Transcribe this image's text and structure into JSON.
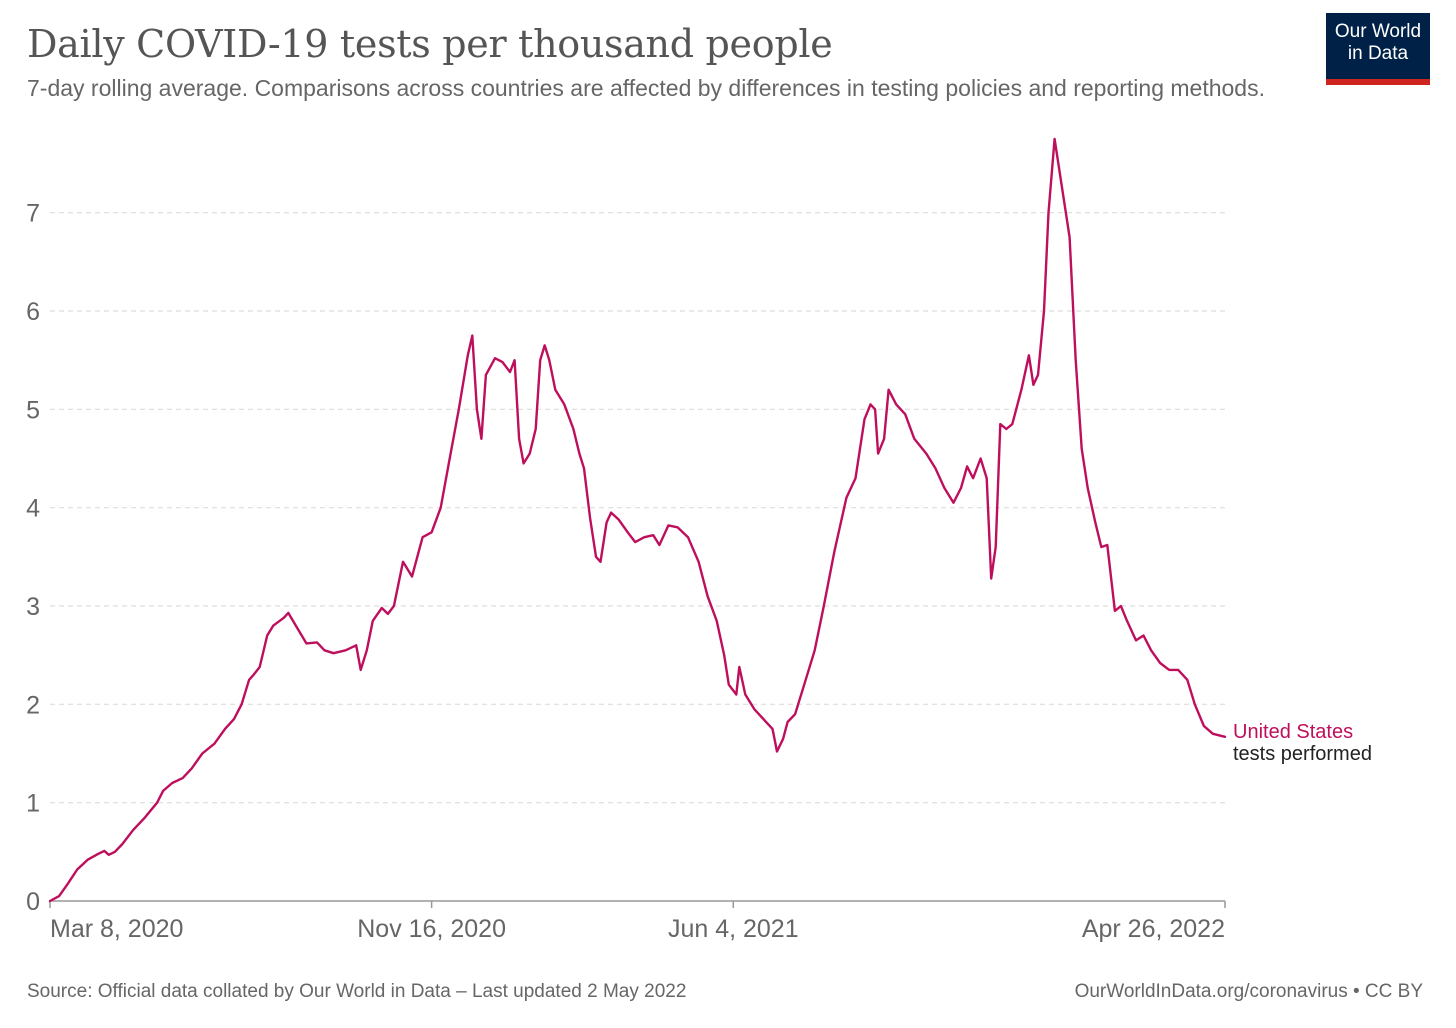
{
  "chart_data": {
    "type": "line",
    "title": "Daily COVID-19 tests per thousand people",
    "subtitle": "7-day rolling average. Comparisons across countries are affected by differences in testing policies and reporting methods.",
    "xlabel": "",
    "ylabel": "",
    "ylim": [
      0,
      7.8
    ],
    "yticks": [
      "0",
      "1",
      "2",
      "3",
      "4",
      "5",
      "6",
      "7"
    ],
    "grid": true,
    "x_start": "2020-03-08",
    "x_end": "2022-04-26",
    "xticks": [
      {
        "date": "2020-03-08",
        "label": "Mar 8, 2020"
      },
      {
        "date": "2020-11-16",
        "label": "Nov 16, 2020"
      },
      {
        "date": "2021-06-04",
        "label": "Jun 4, 2021"
      },
      {
        "date": "2022-04-26",
        "label": "Apr 26, 2022"
      }
    ],
    "series": [
      {
        "name": "United States",
        "sublabel": "tests performed",
        "color": "#be0f5d",
        "points": [
          [
            "2020-03-08",
            0.0
          ],
          [
            "2020-03-14",
            0.05
          ],
          [
            "2020-03-20",
            0.18
          ],
          [
            "2020-03-26",
            0.32
          ],
          [
            "2020-04-02",
            0.42
          ],
          [
            "2020-04-09",
            0.48
          ],
          [
            "2020-04-13",
            0.51
          ],
          [
            "2020-04-16",
            0.47
          ],
          [
            "2020-04-20",
            0.5
          ],
          [
            "2020-04-25",
            0.58
          ],
          [
            "2020-05-02",
            0.72
          ],
          [
            "2020-05-10",
            0.85
          ],
          [
            "2020-05-18",
            1.0
          ],
          [
            "2020-05-22",
            1.12
          ],
          [
            "2020-05-28",
            1.2
          ],
          [
            "2020-06-04",
            1.25
          ],
          [
            "2020-06-10",
            1.35
          ],
          [
            "2020-06-17",
            1.5
          ],
          [
            "2020-06-25",
            1.6
          ],
          [
            "2020-07-02",
            1.75
          ],
          [
            "2020-07-08",
            1.85
          ],
          [
            "2020-07-13",
            2.0
          ],
          [
            "2020-07-18",
            2.25
          ],
          [
            "2020-07-21",
            2.3
          ],
          [
            "2020-07-25",
            2.38
          ],
          [
            "2020-07-30",
            2.7
          ],
          [
            "2020-08-03",
            2.8
          ],
          [
            "2020-08-10",
            2.88
          ],
          [
            "2020-08-13",
            2.93
          ],
          [
            "2020-08-18",
            2.8
          ],
          [
            "2020-08-25",
            2.62
          ],
          [
            "2020-09-01",
            2.63
          ],
          [
            "2020-09-06",
            2.55
          ],
          [
            "2020-09-12",
            2.52
          ],
          [
            "2020-09-20",
            2.55
          ],
          [
            "2020-09-27",
            2.6
          ],
          [
            "2020-09-30",
            2.35
          ],
          [
            "2020-10-04",
            2.55
          ],
          [
            "2020-10-08",
            2.85
          ],
          [
            "2020-10-14",
            2.98
          ],
          [
            "2020-10-18",
            2.92
          ],
          [
            "2020-10-22",
            3.0
          ],
          [
            "2020-10-28",
            3.45
          ],
          [
            "2020-11-03",
            3.3
          ],
          [
            "2020-11-10",
            3.7
          ],
          [
            "2020-11-16",
            3.75
          ],
          [
            "2020-11-22",
            4.0
          ],
          [
            "2020-11-28",
            4.5
          ],
          [
            "2020-12-04",
            5.0
          ],
          [
            "2020-12-10",
            5.55
          ],
          [
            "2020-12-13",
            5.75
          ],
          [
            "2020-12-16",
            5.0
          ],
          [
            "2020-12-19",
            4.7
          ],
          [
            "2020-12-22",
            5.35
          ],
          [
            "2020-12-28",
            5.52
          ],
          [
            "2021-01-02",
            5.48
          ],
          [
            "2021-01-07",
            5.38
          ],
          [
            "2021-01-10",
            5.5
          ],
          [
            "2021-01-13",
            4.7
          ],
          [
            "2021-01-16",
            4.45
          ],
          [
            "2021-01-20",
            4.55
          ],
          [
            "2021-01-24",
            4.8
          ],
          [
            "2021-01-27",
            5.5
          ],
          [
            "2021-01-30",
            5.65
          ],
          [
            "2021-02-02",
            5.5
          ],
          [
            "2021-02-06",
            5.2
          ],
          [
            "2021-02-12",
            5.05
          ],
          [
            "2021-02-18",
            4.8
          ],
          [
            "2021-02-22",
            4.55
          ],
          [
            "2021-02-25",
            4.4
          ],
          [
            "2021-03-01",
            3.9
          ],
          [
            "2021-03-05",
            3.5
          ],
          [
            "2021-03-08",
            3.45
          ],
          [
            "2021-03-12",
            3.85
          ],
          [
            "2021-03-15",
            3.95
          ],
          [
            "2021-03-20",
            3.88
          ],
          [
            "2021-03-26",
            3.75
          ],
          [
            "2021-03-31",
            3.65
          ],
          [
            "2021-04-06",
            3.7
          ],
          [
            "2021-04-12",
            3.72
          ],
          [
            "2021-04-16",
            3.62
          ],
          [
            "2021-04-22",
            3.82
          ],
          [
            "2021-04-28",
            3.8
          ],
          [
            "2021-05-05",
            3.7
          ],
          [
            "2021-05-12",
            3.45
          ],
          [
            "2021-05-18",
            3.1
          ],
          [
            "2021-05-24",
            2.85
          ],
          [
            "2021-05-29",
            2.5
          ],
          [
            "2021-06-01",
            2.2
          ],
          [
            "2021-06-06",
            2.1
          ],
          [
            "2021-06-08",
            2.38
          ],
          [
            "2021-06-12",
            2.1
          ],
          [
            "2021-06-18",
            1.95
          ],
          [
            "2021-06-24",
            1.85
          ],
          [
            "2021-06-30",
            1.75
          ],
          [
            "2021-07-03",
            1.52
          ],
          [
            "2021-07-07",
            1.65
          ],
          [
            "2021-07-10",
            1.82
          ],
          [
            "2021-07-15",
            1.9
          ],
          [
            "2021-07-21",
            2.2
          ],
          [
            "2021-07-28",
            2.55
          ],
          [
            "2021-08-03",
            3.0
          ],
          [
            "2021-08-10",
            3.55
          ],
          [
            "2021-08-18",
            4.1
          ],
          [
            "2021-08-24",
            4.3
          ],
          [
            "2021-08-30",
            4.9
          ],
          [
            "2021-09-03",
            5.05
          ],
          [
            "2021-09-06",
            5.0
          ],
          [
            "2021-09-08",
            4.55
          ],
          [
            "2021-09-12",
            4.7
          ],
          [
            "2021-09-15",
            5.2
          ],
          [
            "2021-09-20",
            5.05
          ],
          [
            "2021-09-26",
            4.95
          ],
          [
            "2021-10-02",
            4.7
          ],
          [
            "2021-10-10",
            4.55
          ],
          [
            "2021-10-16",
            4.4
          ],
          [
            "2021-10-22",
            4.2
          ],
          [
            "2021-10-28",
            4.05
          ],
          [
            "2021-11-02",
            4.2
          ],
          [
            "2021-11-06",
            4.42
          ],
          [
            "2021-11-10",
            4.3
          ],
          [
            "2021-11-15",
            4.5
          ],
          [
            "2021-11-19",
            4.3
          ],
          [
            "2021-11-22",
            3.28
          ],
          [
            "2021-11-25",
            3.6
          ],
          [
            "2021-11-28",
            4.85
          ],
          [
            "2021-12-02",
            4.8
          ],
          [
            "2021-12-06",
            4.85
          ],
          [
            "2021-12-12",
            5.2
          ],
          [
            "2021-12-17",
            5.55
          ],
          [
            "2021-12-20",
            5.25
          ],
          [
            "2021-12-23",
            5.35
          ],
          [
            "2021-12-27",
            6.0
          ],
          [
            "2021-12-30",
            7.0
          ],
          [
            "2022-01-03",
            7.75
          ],
          [
            "2022-01-07",
            7.35
          ],
          [
            "2022-01-10",
            7.05
          ],
          [
            "2022-01-13",
            6.75
          ],
          [
            "2022-01-17",
            5.5
          ],
          [
            "2022-01-21",
            4.6
          ],
          [
            "2022-01-25",
            4.2
          ],
          [
            "2022-01-30",
            3.85
          ],
          [
            "2022-02-03",
            3.6
          ],
          [
            "2022-02-07",
            3.62
          ],
          [
            "2022-02-12",
            2.95
          ],
          [
            "2022-02-16",
            3.0
          ],
          [
            "2022-02-20",
            2.85
          ],
          [
            "2022-02-26",
            2.65
          ],
          [
            "2022-03-03",
            2.7
          ],
          [
            "2022-03-08",
            2.55
          ],
          [
            "2022-03-14",
            2.42
          ],
          [
            "2022-03-20",
            2.35
          ],
          [
            "2022-03-26",
            2.35
          ],
          [
            "2022-04-01",
            2.25
          ],
          [
            "2022-04-06",
            2.0
          ],
          [
            "2022-04-12",
            1.78
          ],
          [
            "2022-04-18",
            1.7
          ],
          [
            "2022-04-26",
            1.67
          ]
        ]
      }
    ]
  },
  "branding": {
    "logo_line1": "Our World",
    "logo_line2": "in Data"
  },
  "footer": {
    "source": "Source: Official data collated by Our World in Data – Last updated 2 May 2022",
    "license": "OurWorldInData.org/coronavirus • CC BY"
  }
}
